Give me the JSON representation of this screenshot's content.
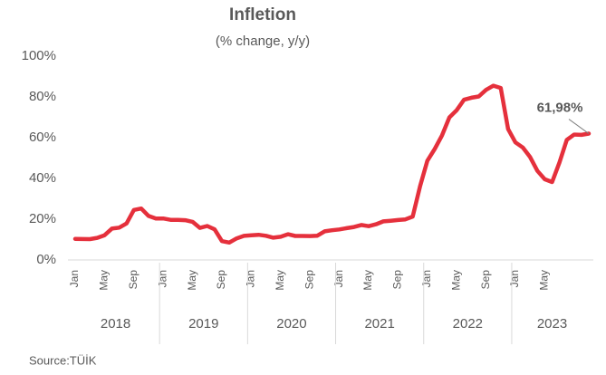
{
  "chart_data": {
    "type": "line",
    "title": "Infletion",
    "subtitle": "(% change, y/y)",
    "source": "Source:TÜİK",
    "categories": [
      "Jan",
      null,
      null,
      null,
      "May",
      null,
      null,
      null,
      "Sep",
      null,
      null,
      null,
      "Jan",
      null,
      null,
      null,
      "May",
      null,
      null,
      null,
      "Sep",
      null,
      null,
      null,
      "Jan",
      null,
      null,
      null,
      "May",
      null,
      null,
      null,
      "Sep",
      null,
      null,
      null,
      "Jan",
      null,
      null,
      null,
      "May",
      null,
      null,
      null,
      "Sep",
      null,
      null,
      null,
      "Jan",
      null,
      null,
      null,
      "May",
      null,
      null,
      null,
      "Sep",
      null,
      null,
      null,
      "Jan",
      null,
      null,
      null,
      "May",
      null,
      null,
      null,
      null,
      null,
      null
    ],
    "years": [
      "2018",
      "2019",
      "2020",
      "2021",
      "2022",
      "2023"
    ],
    "series": [
      {
        "name": "Inflation",
        "color": "#e5303c",
        "values": [
          10.35,
          10.26,
          10.23,
          10.85,
          12.15,
          15.39,
          15.85,
          17.9,
          24.52,
          25.24,
          21.62,
          20.3,
          20.35,
          19.67,
          19.71,
          19.5,
          18.71,
          15.72,
          16.65,
          15.01,
          9.26,
          8.55,
          10.56,
          11.84,
          12.15,
          12.37,
          11.86,
          10.94,
          11.39,
          12.62,
          11.76,
          11.77,
          11.75,
          11.89,
          14.03,
          14.6,
          14.97,
          15.61,
          16.19,
          17.14,
          16.59,
          17.53,
          18.95,
          19.25,
          19.58,
          19.89,
          21.31,
          36.08,
          48.69,
          54.44,
          61.14,
          69.97,
          73.5,
          78.62,
          79.6,
          80.21,
          83.45,
          85.51,
          84.39,
          64.27,
          57.68,
          55.18,
          50.51,
          43.68,
          39.59,
          38.21,
          47.83,
          58.94,
          61.53,
          61.36,
          61.98
        ],
        "value_labels": [
          null,
          null,
          null,
          null,
          null,
          null,
          null,
          null,
          null,
          null,
          null,
          null,
          null,
          null,
          null,
          null,
          null,
          null,
          null,
          null,
          null,
          null,
          null,
          null,
          null,
          null,
          null,
          null,
          null,
          null,
          null,
          null,
          null,
          null,
          null,
          null,
          null,
          null,
          null,
          null,
          null,
          null,
          null,
          null,
          null,
          null,
          null,
          null,
          null,
          null,
          null,
          null,
          null,
          null,
          null,
          null,
          null,
          null,
          null,
          null,
          null,
          null,
          null,
          null,
          null,
          null,
          null,
          null,
          null,
          null,
          "61,98%"
        ]
      }
    ],
    "ylim": [
      0,
      100
    ],
    "yticks": [
      {
        "value": 0,
        "label": "0%"
      },
      {
        "value": 20,
        "label": "20%"
      },
      {
        "value": 40,
        "label": "40%"
      },
      {
        "value": 60,
        "label": "60%"
      },
      {
        "value": 80,
        "label": "80%"
      },
      {
        "value": 100,
        "label": "100%"
      }
    ],
    "grid": false
  }
}
